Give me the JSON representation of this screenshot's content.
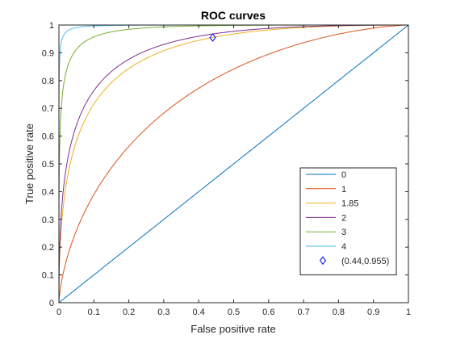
{
  "chart_data": {
    "type": "line",
    "title": "ROC curves",
    "xlabel": "False positive rate",
    "ylabel": "True positive rate",
    "xlim": [
      0,
      1
    ],
    "ylim": [
      0,
      1
    ],
    "xticks": [
      "0",
      "0.1",
      "0.2",
      "0.3",
      "0.4",
      "0.5",
      "0.6",
      "0.7",
      "0.8",
      "0.9",
      "1"
    ],
    "yticks": [
      "0",
      "0.1",
      "0.2",
      "0.3",
      "0.4",
      "0.5",
      "0.6",
      "0.7",
      "0.8",
      "0.9",
      "1"
    ],
    "grid": false,
    "legend_position": "lower-right",
    "series": [
      {
        "name": "0",
        "d": 0,
        "color": "#0072BD"
      },
      {
        "name": "1",
        "d": 1,
        "color": "#D95319"
      },
      {
        "name": "1.85",
        "d": 1.85,
        "color": "#EDB120"
      },
      {
        "name": "2",
        "d": 2,
        "color": "#7E2F8E"
      },
      {
        "name": "3",
        "d": 3,
        "color": "#77AC30"
      },
      {
        "name": "4",
        "d": 4,
        "color": "#4DBEEE"
      }
    ],
    "marker": {
      "name": "(0.44,0.955)",
      "x": 0.44,
      "y": 0.955,
      "color": "#0000FF",
      "shape": "diamond"
    }
  }
}
